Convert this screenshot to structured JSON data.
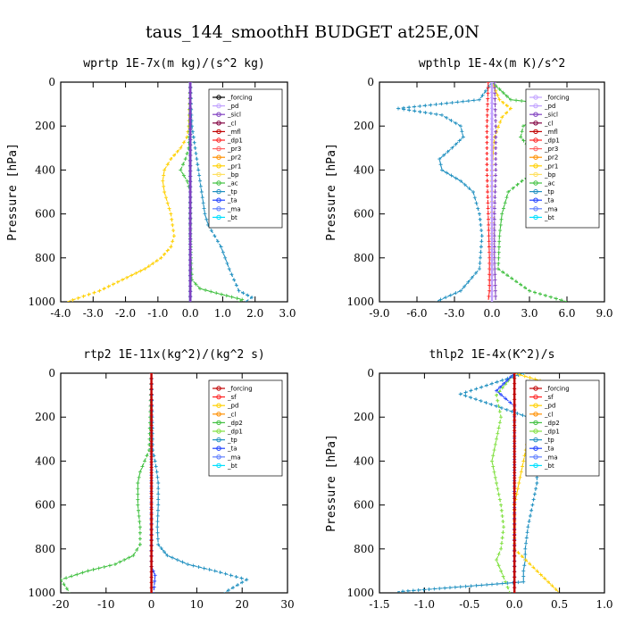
{
  "figure_title": "taus_144_smoothH  BUDGET at25E,0N",
  "chart_data": [
    {
      "type": "line",
      "title": "wprtp  1E-7x(m kg)/(s^2 kg)",
      "ylabel": "Pressure [hPa]",
      "xlim": [
        -4.0,
        3.0
      ],
      "ylim": [
        1000,
        0
      ],
      "xticks": [
        -4.0,
        -3.0,
        -2.0,
        -1.0,
        0.0,
        1.0,
        2.0,
        3.0
      ],
      "xtick_labels": [
        "-4.0",
        "-3.0",
        "-2.0",
        "-1.0",
        "0.0",
        "1.0",
        "2.0",
        "3.0"
      ],
      "yticks": [
        0,
        200,
        400,
        600,
        800,
        1000
      ],
      "legend": [
        "_forcing",
        "_pd",
        "_sicl",
        "_cl",
        "_mfl",
        "_dp1",
        "_pr3",
        "_pr2",
        "_pr1",
        "_bp",
        "_ac",
        "_tp",
        "_ta",
        "_ma",
        "_bt"
      ],
      "legend_colors": [
        "#000000",
        "#c0a0ff",
        "#8040c0",
        "#800040",
        "#c00000",
        "#ff2020",
        "#ff6060",
        "#ff9000",
        "#ffd000",
        "#ffe060",
        "#40c040",
        "#2090c0",
        "#2040ff",
        "#6080ff",
        "#00e0ff"
      ],
      "legend_position": "top-right",
      "series": [
        {
          "name": "_tp",
          "color": "#2090c0",
          "x": [
            0.0,
            0.02,
            0.05,
            0.1,
            0.15,
            0.2,
            0.25,
            0.3,
            0.35,
            0.4,
            0.45,
            0.55,
            0.75,
            0.95,
            1.2,
            1.5,
            1.9,
            1.7
          ],
          "y": [
            0,
            100,
            200,
            250,
            300,
            350,
            400,
            450,
            500,
            550,
            600,
            650,
            700,
            750,
            850,
            950,
            980,
            1000
          ]
        },
        {
          "name": "_pr1",
          "color": "#ffd000",
          "x": [
            0.0,
            -0.05,
            -0.1,
            -0.3,
            -0.6,
            -0.8,
            -0.85,
            -0.8,
            -0.7,
            -0.6,
            -0.55,
            -0.5,
            -0.6,
            -0.9,
            -1.4,
            -2.1,
            -2.8,
            -3.8
          ],
          "y": [
            0,
            200,
            250,
            300,
            350,
            400,
            450,
            500,
            550,
            600,
            650,
            700,
            750,
            800,
            850,
            900,
            950,
            1000
          ]
        },
        {
          "name": "_ac",
          "color": "#40c040",
          "x": [
            0.0,
            -0.02,
            -0.05,
            -0.15,
            -0.3,
            -0.1,
            0.0,
            0.0,
            0.05,
            0.3,
            0.8,
            1.6,
            1.5
          ],
          "y": [
            0,
            200,
            300,
            350,
            400,
            450,
            500,
            700,
            900,
            940,
            960,
            990,
            1000
          ]
        },
        {
          "name": "_bt",
          "color": "#00e0ff",
          "x": [
            0.0,
            0.0,
            0.0
          ],
          "y": [
            0,
            500,
            1000
          ]
        },
        {
          "name": "_forcing",
          "color": "#000000",
          "x": [
            0.0,
            0.0,
            0.0
          ],
          "y": [
            0,
            500,
            1000
          ]
        },
        {
          "name": "_ma",
          "color": "#6080ff",
          "x": [
            0.0,
            0.0,
            0.0
          ],
          "y": [
            0,
            500,
            1000
          ]
        },
        {
          "name": "_sicl",
          "color": "#8040c0",
          "x": [
            0.0,
            0.0,
            0.0
          ],
          "y": [
            0,
            500,
            1000
          ]
        }
      ]
    },
    {
      "type": "line",
      "title": "wpthlp  1E-4x(m K)/s^2",
      "ylabel": "Pressure [hPa]",
      "xlim": [
        -9.0,
        9.0
      ],
      "ylim": [
        1000,
        0
      ],
      "xticks": [
        -9.0,
        -6.0,
        -3.0,
        0.0,
        3.0,
        6.0,
        9.0
      ],
      "xtick_labels": [
        "-9.0",
        "-6.0",
        "-3.0",
        "0.0",
        "3.0",
        "6.0",
        "9.0"
      ],
      "yticks": [
        0,
        200,
        400,
        600,
        800,
        1000
      ],
      "legend": [
        "_forcing",
        "_pd",
        "_sicl",
        "_cl",
        "_mfl",
        "_dp1",
        "_pr3",
        "_pr2",
        "_pr1",
        "_bp",
        "_ac",
        "_tp",
        "_ta",
        "_ma",
        "_bt"
      ],
      "legend_colors": [
        "#c0a0ff",
        "#c0a0ff",
        "#8040c0",
        "#800040",
        "#c00000",
        "#ff2020",
        "#ff6060",
        "#ff9000",
        "#ffd000",
        "#ffe060",
        "#40c040",
        "#2090c0",
        "#2040ff",
        "#6080ff",
        "#00e0ff"
      ],
      "legend_position": "top-right",
      "series": [
        {
          "name": "_tp",
          "color": "#2090c0",
          "x": [
            0.0,
            -1.0,
            -7.5,
            -4.0,
            -2.5,
            -2.3,
            -3.2,
            -4.2,
            -4.0,
            -2.5,
            -1.5,
            -1.0,
            -0.8,
            -1.0,
            -2.5,
            -4.5
          ],
          "y": [
            0,
            80,
            120,
            150,
            200,
            250,
            300,
            350,
            400,
            450,
            500,
            600,
            700,
            850,
            950,
            1000
          ]
        },
        {
          "name": "_ac",
          "color": "#40c040",
          "x": [
            0.0,
            1.5,
            8.0,
            4.0,
            2.5,
            2.3,
            3.0,
            4.0,
            3.8,
            2.4,
            1.3,
            0.8,
            0.6,
            0.5,
            3.0,
            6.0
          ],
          "y": [
            0,
            80,
            120,
            150,
            200,
            250,
            300,
            350,
            400,
            450,
            500,
            600,
            700,
            850,
            950,
            1000
          ]
        },
        {
          "name": "_pr1",
          "color": "#ffd000",
          "x": [
            0.0,
            0.6,
            1.5,
            0.8,
            0.2,
            0.0,
            0.0
          ],
          "y": [
            0,
            80,
            120,
            160,
            250,
            400,
            1000
          ]
        },
        {
          "name": "_dp1",
          "color": "#ff2020",
          "x": [
            -0.3,
            -0.4,
            -0.4,
            -0.3,
            -0.2,
            -0.2,
            -0.3
          ],
          "y": [
            0,
            200,
            400,
            600,
            800,
            950,
            1000
          ]
        },
        {
          "name": "_sicl",
          "color": "#8040c0",
          "x": [
            0.2,
            0.3,
            0.3,
            0.2,
            0.2,
            0.3
          ],
          "y": [
            0,
            200,
            400,
            600,
            800,
            1000
          ]
        },
        {
          "name": "_forcing",
          "color": "#c0a0ff",
          "x": [
            0.0,
            0.0,
            0.0
          ],
          "y": [
            0,
            500,
            1000
          ]
        }
      ]
    },
    {
      "type": "line",
      "title": "rtp2  1E-11x(kg^2)/(kg^2 s)",
      "ylabel": "",
      "xlim": [
        -20,
        30
      ],
      "ylim": [
        1000,
        0
      ],
      "xticks": [
        -20,
        -10,
        0,
        10,
        20,
        30
      ],
      "xtick_labels": [
        "-20",
        "-10",
        "0",
        "10",
        "20",
        "30"
      ],
      "yticks": [
        0,
        200,
        400,
        600,
        800,
        1000
      ],
      "legend": [
        "_forcing",
        "_sf",
        "_pd",
        "_cl",
        "_dp2",
        "_dp1",
        "_tp",
        "_ta",
        "_ma",
        "_bt"
      ],
      "legend_colors": [
        "#c00000",
        "#ff2020",
        "#ffd000",
        "#ff9000",
        "#40c040",
        "#80e040",
        "#2090c0",
        "#2040ff",
        "#6080ff",
        "#00e0ff"
      ],
      "legend_position": "top-right",
      "series": [
        {
          "name": "_dp2",
          "color": "#40c040",
          "x": [
            0,
            -0.5,
            -1.5,
            -2.5,
            -3.0,
            -3.0,
            -2.5,
            -2.5,
            -4.0,
            -8.0,
            -14.0,
            -20.0,
            -18.0
          ],
          "y": [
            0,
            350,
            400,
            450,
            500,
            600,
            700,
            780,
            830,
            870,
            900,
            940,
            1000
          ]
        },
        {
          "name": "_tp",
          "color": "#2090c0",
          "x": [
            0,
            0.3,
            0.8,
            1.2,
            1.5,
            1.5,
            1.3,
            1.5,
            3.5,
            8.0,
            14.0,
            21.0,
            16.0
          ],
          "y": [
            0,
            350,
            400,
            450,
            500,
            600,
            700,
            780,
            830,
            870,
            900,
            940,
            1000
          ]
        },
        {
          "name": "_ta",
          "color": "#2040ff",
          "x": [
            0,
            0,
            0.8,
            0.5
          ],
          "y": [
            0,
            880,
            920,
            1000
          ]
        },
        {
          "name": "_forcing",
          "color": "#c00000",
          "x": [
            0,
            0,
            0
          ],
          "y": [
            0,
            500,
            1000
          ]
        }
      ]
    },
    {
      "type": "line",
      "title": "thlp2  1E-4x(K^2)/s",
      "ylabel": "Pressure [hPa]",
      "xlim": [
        -1.5,
        1.0
      ],
      "ylim": [
        1000,
        0
      ],
      "xticks": [
        -1.5,
        -1.0,
        -0.5,
        0.0,
        0.5,
        1.0
      ],
      "xtick_labels": [
        "-1.5",
        "-1.0",
        "-0.5",
        "0.0",
        "0.5",
        "1.0"
      ],
      "yticks": [
        0,
        200,
        400,
        600,
        800,
        1000
      ],
      "legend": [
        "_forcing",
        "_sf",
        "_pd",
        "_cl",
        "_dp2",
        "_dp1",
        "_tp",
        "_ta",
        "_ma",
        "_bt"
      ],
      "legend_colors": [
        "#c00000",
        "#ff2020",
        "#ffd000",
        "#ff9000",
        "#40c040",
        "#80e040",
        "#2090c0",
        "#2040ff",
        "#6080ff",
        "#00e0ff"
      ],
      "legend_position": "top-right",
      "series": [
        {
          "name": "_dp1",
          "color": "#80e040",
          "x": [
            0.0,
            -0.1,
            -0.2,
            -0.15,
            -0.2,
            -0.25,
            -0.2,
            -0.15,
            -0.12,
            -0.15,
            -0.2,
            -0.15,
            -0.1,
            -0.05
          ],
          "y": [
            0,
            50,
            100,
            200,
            300,
            400,
            500,
            600,
            700,
            800,
            850,
            900,
            950,
            1000
          ]
        },
        {
          "name": "_tp",
          "color": "#2090c0",
          "x": [
            0.1,
            -0.6,
            -0.2,
            0.15,
            0.2,
            0.25,
            0.25,
            0.2,
            0.15,
            0.12,
            0.12,
            0.1,
            0.1,
            -1.3
          ],
          "y": [
            0,
            95,
            150,
            200,
            300,
            400,
            500,
            600,
            700,
            800,
            850,
            900,
            950,
            995
          ]
        },
        {
          "name": "_pd",
          "color": "#ffd000",
          "x": [
            0.0,
            0.8,
            0.4,
            0.2,
            0.15,
            0.1,
            0.05,
            0.0,
            0.0,
            0.5
          ],
          "y": [
            0,
            95,
            130,
            200,
            300,
            400,
            500,
            600,
            800,
            1000
          ]
        },
        {
          "name": "_ta",
          "color": "#2040ff",
          "x": [
            0.0,
            -0.2,
            0.0,
            0.0
          ],
          "y": [
            0,
            80,
            150,
            1000
          ]
        },
        {
          "name": "_forcing",
          "color": "#c00000",
          "x": [
            0.0,
            0.0,
            0.0
          ],
          "y": [
            0,
            500,
            1000
          ]
        }
      ]
    }
  ]
}
